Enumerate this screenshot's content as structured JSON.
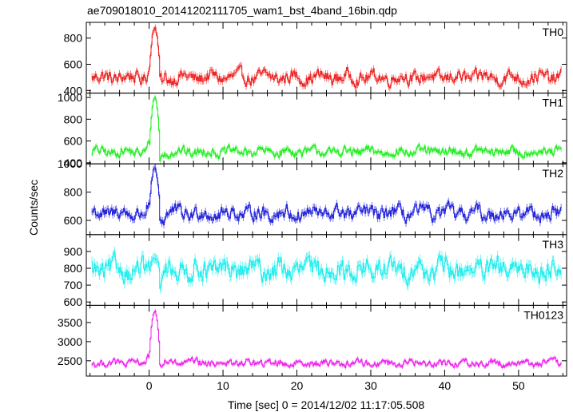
{
  "chart_data": {
    "type": "line",
    "title": "ae709018010_20141202111705_wam1_bst_4band_16bin.qdp",
    "xlabel": "Time [sec] 0 = 2014/12/02 11:17:05.508",
    "ylabel": "Counts/sec",
    "xlim": [
      -8.5,
      56.5
    ],
    "x_ticks": [
      0,
      10,
      20,
      30,
      40,
      50
    ],
    "grid": false,
    "legend": "none",
    "panels": [
      {
        "name": "TH0",
        "color": "#ee2222",
        "ylim": [
          380,
          920
        ],
        "y_ticks": [
          400,
          600,
          800
        ],
        "baseline": 500,
        "noise": 45,
        "peak": 880,
        "pre_bump": 70
      },
      {
        "name": "TH1",
        "color": "#22ee22",
        "ylim": [
          390,
          1040
        ],
        "y_ticks": [
          400,
          600,
          800,
          1000
        ],
        "baseline": 500,
        "noise": 40,
        "peak": 1000,
        "pre_bump": 70
      },
      {
        "name": "TH2",
        "color": "#2222dd",
        "ylim": [
          500,
          1000
        ],
        "y_ticks": [
          600,
          800,
          1000
        ],
        "baseline": 650,
        "noise": 45,
        "peak": 970,
        "pre_bump": 50
      },
      {
        "name": "TH3",
        "color": "#22eeee",
        "ylim": [
          580,
          1000
        ],
        "y_ticks": [
          600,
          700,
          800,
          900
        ],
        "baseline": 790,
        "noise": 55,
        "peak": 850,
        "pre_bump": 0
      },
      {
        "name": "TH0123",
        "color": "#ee22ee",
        "ylim": [
          2100,
          3950
        ],
        "y_ticks": [
          2500,
          3000,
          3500
        ],
        "baseline": 2440,
        "noise": 85,
        "peak": 3800,
        "pre_bump": 250
      }
    ]
  }
}
